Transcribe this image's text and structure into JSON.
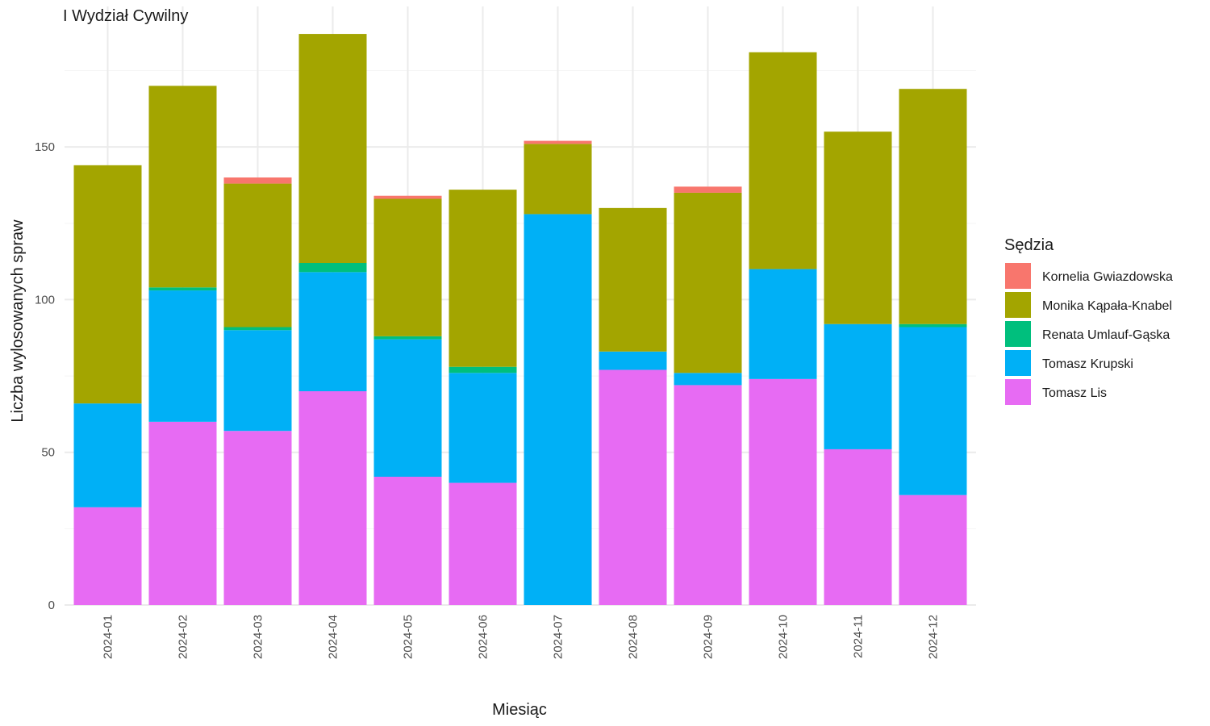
{
  "chart_data": {
    "type": "bar",
    "stacked": true,
    "title": "I Wydział Cywilny",
    "xlabel": "Miesiąc",
    "ylabel": "Liczba wylosowanych spraw",
    "ylim": [
      0,
      196
    ],
    "yticks": [
      0,
      50,
      100,
      150
    ],
    "grid": true,
    "legend_position": "right",
    "legend_title": "Sędzia",
    "categories": [
      "2024-01",
      "2024-02",
      "2024-03",
      "2024-04",
      "2024-05",
      "2024-06",
      "2024-07",
      "2024-08",
      "2024-09",
      "2024-10",
      "2024-11",
      "2024-12"
    ],
    "series": [
      {
        "name": "Tomasz Lis",
        "color": "#E76BF3",
        "values": [
          32,
          60,
          57,
          70,
          42,
          40,
          0,
          77,
          72,
          74,
          51,
          36
        ]
      },
      {
        "name": "Tomasz Krupski",
        "color": "#00B0F6",
        "values": [
          34,
          43,
          33,
          39,
          45,
          36,
          128,
          6,
          4,
          36,
          41,
          55
        ]
      },
      {
        "name": "Renata Umlauf-Gąska",
        "color": "#00BF7D",
        "values": [
          0,
          1,
          1,
          3,
          1,
          2,
          0,
          0,
          0,
          0,
          0,
          1
        ]
      },
      {
        "name": "Monika Kąpała-Knabel",
        "color": "#A3A500",
        "values": [
          78,
          66,
          47,
          75,
          45,
          58,
          23,
          47,
          59,
          71,
          63,
          77
        ]
      },
      {
        "name": "Kornelia Gwiazdowska",
        "color": "#F8766D",
        "values": [
          0,
          0,
          2,
          0,
          1,
          0,
          1,
          0,
          2,
          0,
          0,
          0
        ]
      }
    ],
    "legend_order": [
      "Kornelia Gwiazdowska",
      "Monika Kąpała-Knabel",
      "Renata Umlauf-Gąska",
      "Tomasz Krupski",
      "Tomasz Lis"
    ]
  }
}
